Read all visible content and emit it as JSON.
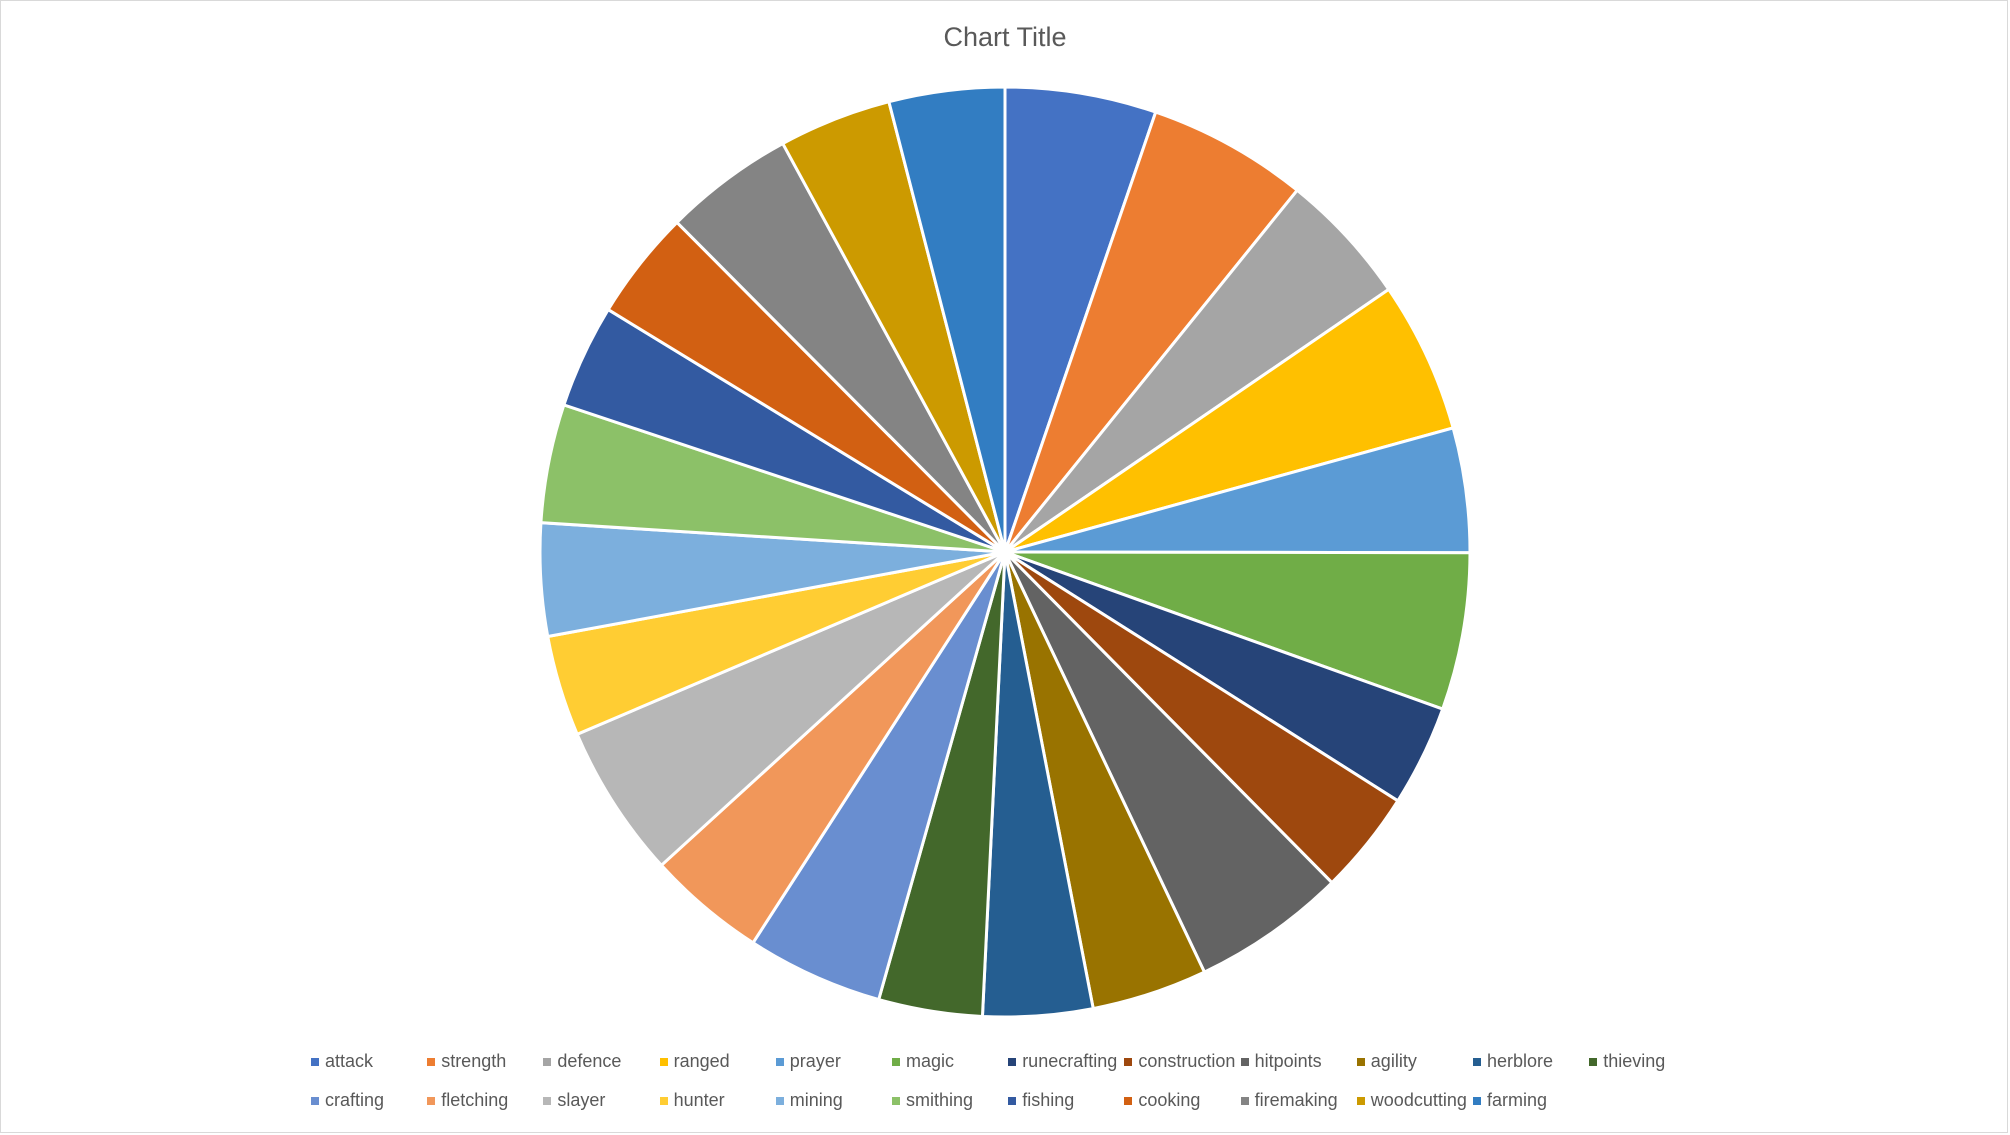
{
  "chart_data": {
    "type": "pie",
    "title": "Chart Title",
    "legend_position": "bottom",
    "series": [
      {
        "categories": [
          "attack",
          "strength",
          "defence",
          "ranged",
          "prayer",
          "magic",
          "runecrafting",
          "construction",
          "hitpoints",
          "agility",
          "herblore",
          "thieving",
          "crafting",
          "fletching",
          "slayer",
          "hunter",
          "mining",
          "smithing",
          "fishing",
          "cooking",
          "firemaking",
          "woodcutting",
          "farming"
        ],
        "values": [
          5.1,
          5.4,
          4.5,
          5.1,
          4.2,
          5.3,
          3.4,
          3.5,
          5.2,
          3.9,
          3.7,
          3.5,
          4.6,
          4.0,
          5.2,
          3.4,
          3.8,
          4.0,
          3.5,
          3.7,
          4.4,
          3.8,
          3.9
        ],
        "colors": [
          "#4472C4",
          "#ED7D31",
          "#A5A5A5",
          "#FFC000",
          "#5B9BD5",
          "#70AD47",
          "#264478",
          "#9E480E",
          "#636363",
          "#997300",
          "#255E91",
          "#43682B",
          "#698ED0",
          "#F1975A",
          "#B7B7B7",
          "#FFCD33",
          "#7CAFDD",
          "#8CC168",
          "#335AA1",
          "#D26012",
          "#848484",
          "#CC9A00",
          "#327DC2"
        ]
      }
    ]
  }
}
